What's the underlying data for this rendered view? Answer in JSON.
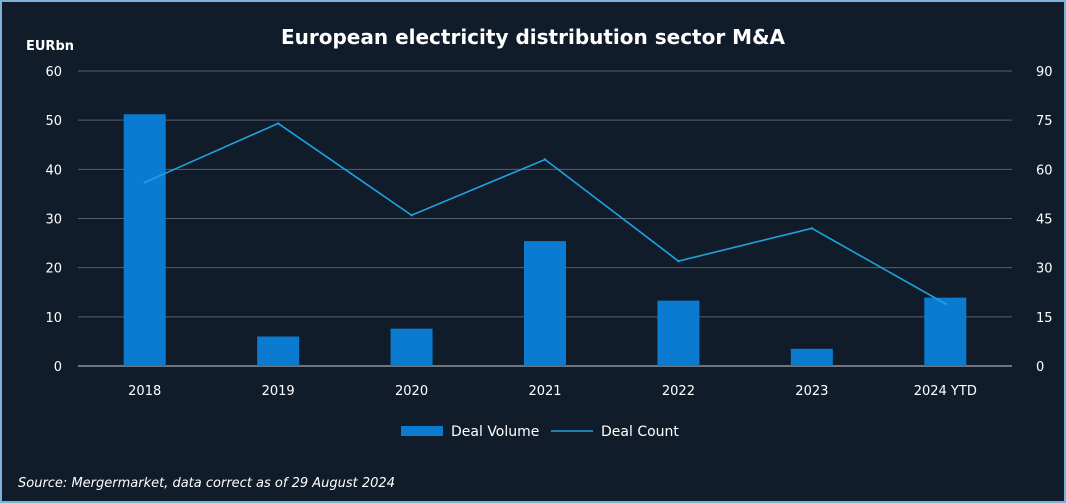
{
  "chart_data": {
    "type": "bar",
    "title": "European electricity distribution sector M&A",
    "ylabel": "EURbn",
    "categories": [
      "2018",
      "2019",
      "2020",
      "2021",
      "2022",
      "2023",
      "2024 YTD"
    ],
    "ylim": [
      0,
      60
    ],
    "y_ticks": [
      0,
      10,
      20,
      30,
      40,
      50,
      60
    ],
    "y2lim": [
      0,
      90
    ],
    "y2_ticks": [
      0,
      15,
      30,
      45,
      60,
      75,
      90
    ],
    "grid": true,
    "legend_position": "bottom",
    "series": [
      {
        "name": "Deal Volume",
        "type": "bar",
        "axis": "left",
        "color": "#0a7bd1",
        "values": [
          51.2,
          6.0,
          7.6,
          25.4,
          13.3,
          3.5,
          13.9
        ]
      },
      {
        "name": "Deal Count",
        "type": "line",
        "axis": "right",
        "color": "#1fa3e0",
        "values": [
          56,
          74,
          46,
          63,
          32,
          42,
          19
        ]
      }
    ],
    "source": "Source: Mergermarket, data correct as of 29 August 2024"
  }
}
